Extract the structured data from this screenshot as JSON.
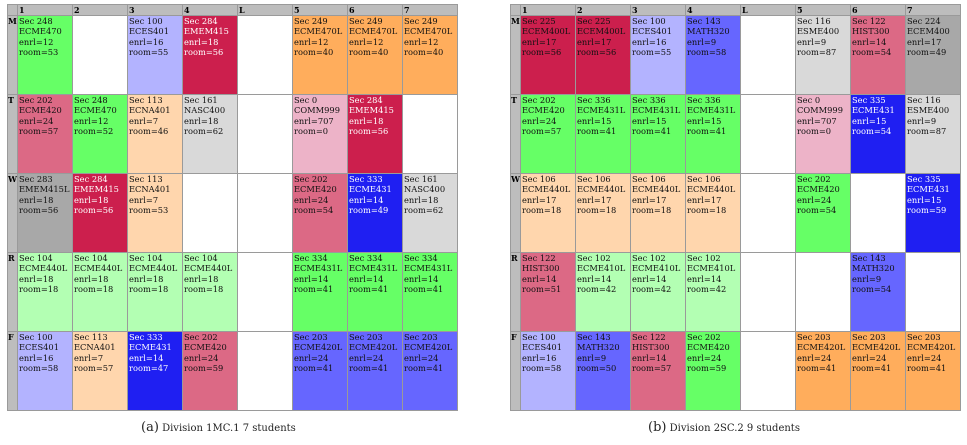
{
  "columns": [
    "1",
    "2",
    "3",
    "4",
    "L",
    "5",
    "6",
    "7"
  ],
  "colors": {
    "green": "#66ff66",
    "lightgreen": "#b3ffb3",
    "periwinkle": "#b3b3ff",
    "blue": "#6666ff",
    "darkblue": "#1f1ff2",
    "crimson": "#cc1f4d",
    "rose": "#dc6985",
    "orange": "#ffad5c",
    "peach": "#ffd6ad",
    "lightgray": "#d9d9d9",
    "gray": "#a8a8a8",
    "pink": "#edb3c8",
    "white": "#ffffff"
  },
  "panels": [
    {
      "caption_tag": "(a)",
      "caption_text": "Division 1MC.1 7 students",
      "days": [
        {
          "label": "M",
          "cells": [
            {
              "sec": "Sec 248",
              "course": "ECME470",
              "enrl": "enrl=12",
              "room": "room=53",
              "color": "green"
            },
            null,
            {
              "sec": "Sec 100",
              "course": "ECES401",
              "enrl": "enrl=16",
              "room": "room=55",
              "color": "periwinkle"
            },
            {
              "sec": "Sec 284",
              "course": "EMEM415",
              "enrl": "enrl=18",
              "room": "room=56",
              "color": "crimson",
              "dark": true
            },
            null,
            {
              "sec": "Sec 249",
              "course": "ECME470L",
              "enrl": "enrl=12",
              "room": "room=40",
              "color": "orange"
            },
            {
              "sec": "Sec 249",
              "course": "ECME470L",
              "enrl": "enrl=12",
              "room": "room=40",
              "color": "orange"
            },
            {
              "sec": "Sec 249",
              "course": "ECME470L",
              "enrl": "enrl=12",
              "room": "room=40",
              "color": "orange"
            }
          ]
        },
        {
          "label": "T",
          "cells": [
            {
              "sec": "Sec 202",
              "course": "ECME420",
              "enrl": "enrl=24",
              "room": "room=57",
              "color": "rose"
            },
            {
              "sec": "Sec 248",
              "course": "ECME470",
              "enrl": "enrl=12",
              "room": "room=52",
              "color": "green"
            },
            {
              "sec": "Sec 113",
              "course": "ECNA401",
              "enrl": "enrl=7",
              "room": "room=46",
              "color": "peach"
            },
            {
              "sec": "Sec 161",
              "course": "NASC400",
              "enrl": "enrl=18",
              "room": "room=62",
              "color": "lightgray"
            },
            null,
            {
              "sec": "Sec 0",
              "course": "COMM999",
              "enrl": "enrl=707",
              "room": "room=0",
              "color": "pink"
            },
            {
              "sec": "Sec 284",
              "course": "EMEM415",
              "enrl": "enrl=18",
              "room": "room=56",
              "color": "crimson",
              "dark": true
            },
            null
          ]
        },
        {
          "label": "W",
          "cells": [
            {
              "sec": "Sec 283",
              "course": "EMEM415L",
              "enrl": "enrl=18",
              "room": "room=56",
              "color": "gray"
            },
            {
              "sec": "Sec 284",
              "course": "EMEM415",
              "enrl": "enrl=18",
              "room": "room=56",
              "color": "crimson",
              "dark": true
            },
            {
              "sec": "Sec 113",
              "course": "ECNA401",
              "enrl": "enrl=7",
              "room": "room=53",
              "color": "peach"
            },
            null,
            null,
            {
              "sec": "Sec 202",
              "course": "ECME420",
              "enrl": "enrl=24",
              "room": "room=54",
              "color": "rose"
            },
            {
              "sec": "Sec 333",
              "course": "ECME431",
              "enrl": "enrl=14",
              "room": "room=49",
              "color": "darkblue",
              "dark": true
            },
            {
              "sec": "Sec 161",
              "course": "NASC400",
              "enrl": "enrl=18",
              "room": "room=62",
              "color": "lightgray"
            }
          ]
        },
        {
          "label": "R",
          "cells": [
            {
              "sec": "Sec 104",
              "course": "ECME440L",
              "enrl": "enrl=18",
              "room": "room=18",
              "color": "lightgreen"
            },
            {
              "sec": "Sec 104",
              "course": "ECME440L",
              "enrl": "enrl=18",
              "room": "room=18",
              "color": "lightgreen"
            },
            {
              "sec": "Sec 104",
              "course": "ECME440L",
              "enrl": "enrl=18",
              "room": "room=18",
              "color": "lightgreen"
            },
            {
              "sec": "Sec 104",
              "course": "ECME440L",
              "enrl": "enrl=18",
              "room": "room=18",
              "color": "lightgreen"
            },
            null,
            {
              "sec": "Sec 334",
              "course": "ECME431L",
              "enrl": "enrl=14",
              "room": "room=41",
              "color": "green"
            },
            {
              "sec": "Sec 334",
              "course": "ECME431L",
              "enrl": "enrl=14",
              "room": "room=41",
              "color": "green"
            },
            {
              "sec": "Sec 334",
              "course": "ECME431L",
              "enrl": "enrl=14",
              "room": "room=41",
              "color": "green"
            }
          ]
        },
        {
          "label": "F",
          "cells": [
            {
              "sec": "Sec 100",
              "course": "ECES401",
              "enrl": "enrl=16",
              "room": "room=58",
              "color": "periwinkle"
            },
            {
              "sec": "Sec 113",
              "course": "ECNA401",
              "enrl": "enrl=7",
              "room": "room=57",
              "color": "peach"
            },
            {
              "sec": "Sec 333",
              "course": "ECME431",
              "enrl": "enrl=14",
              "room": "room=47",
              "color": "darkblue",
              "dark": true
            },
            {
              "sec": "Sec 202",
              "course": "ECME420",
              "enrl": "enrl=24",
              "room": "room=59",
              "color": "rose"
            },
            null,
            {
              "sec": "Sec 203",
              "course": "ECME420L",
              "enrl": "enrl=24",
              "room": "room=41",
              "color": "blue"
            },
            {
              "sec": "Sec 203",
              "course": "ECME420L",
              "enrl": "enrl=24",
              "room": "room=41",
              "color": "blue"
            },
            {
              "sec": "Sec 203",
              "course": "ECME420L",
              "enrl": "enrl=24",
              "room": "room=41",
              "color": "blue"
            }
          ]
        }
      ]
    },
    {
      "caption_tag": "(b)",
      "caption_text": "Division 2SC.2 9 students",
      "days": [
        {
          "label": "M",
          "cells": [
            {
              "sec": "Sec 225",
              "course": "ECEM400L",
              "enrl": "enrl=17",
              "room": "room=56",
              "color": "crimson"
            },
            {
              "sec": "Sec 225",
              "course": "ECEM400L",
              "enrl": "enrl=17",
              "room": "room=56",
              "color": "crimson"
            },
            {
              "sec": "Sec 100",
              "course": "ECES401",
              "enrl": "enrl=16",
              "room": "room=55",
              "color": "periwinkle"
            },
            {
              "sec": "Sec 143",
              "course": "MATH320",
              "enrl": "enrl=9",
              "room": "room=58",
              "color": "blue"
            },
            null,
            {
              "sec": "Sec 116",
              "course": "ESME400",
              "enrl": "enrl=9",
              "room": "room=87",
              "color": "lightgray"
            },
            {
              "sec": "Sec 122",
              "course": "HIST300",
              "enrl": "enrl=14",
              "room": "room=54",
              "color": "rose"
            },
            {
              "sec": "Sec 224",
              "course": "ECEM400",
              "enrl": "enrl=17",
              "room": "room=49",
              "color": "gray"
            }
          ]
        },
        {
          "label": "T",
          "cells": [
            {
              "sec": "Sec 202",
              "course": "ECME420",
              "enrl": "enrl=24",
              "room": "room=57",
              "color": "green"
            },
            {
              "sec": "Sec 336",
              "course": "ECME431L",
              "enrl": "enrl=15",
              "room": "room=41",
              "color": "green"
            },
            {
              "sec": "Sec 336",
              "course": "ECME431L",
              "enrl": "enrl=15",
              "room": "room=41",
              "color": "green"
            },
            {
              "sec": "Sec 336",
              "course": "ECME431L",
              "enrl": "enrl=15",
              "room": "room=41",
              "color": "green"
            },
            null,
            {
              "sec": "Sec 0",
              "course": "COMM999",
              "enrl": "enrl=707",
              "room": "room=0",
              "color": "pink"
            },
            {
              "sec": "Sec 335",
              "course": "ECME431",
              "enrl": "enrl=15",
              "room": "room=54",
              "color": "darkblue",
              "dark": true
            },
            {
              "sec": "Sec 116",
              "course": "ESME400",
              "enrl": "enrl=9",
              "room": "room=87",
              "color": "lightgray"
            }
          ]
        },
        {
          "label": "W",
          "cells": [
            {
              "sec": "Sec 106",
              "course": "ECME440L",
              "enrl": "enrl=17",
              "room": "room=18",
              "color": "peach"
            },
            {
              "sec": "Sec 106",
              "course": "ECME440L",
              "enrl": "enrl=17",
              "room": "room=18",
              "color": "peach"
            },
            {
              "sec": "Sec 106",
              "course": "ECME440L",
              "enrl": "enrl=17",
              "room": "room=18",
              "color": "peach"
            },
            {
              "sec": "Sec 106",
              "course": "ECME440L",
              "enrl": "enrl=17",
              "room": "room=18",
              "color": "peach"
            },
            null,
            {
              "sec": "Sec 202",
              "course": "ECME420",
              "enrl": "enrl=24",
              "room": "room=54",
              "color": "green"
            },
            null,
            {
              "sec": "Sec 335",
              "course": "ECME431",
              "enrl": "enrl=15",
              "room": "room=59",
              "color": "darkblue",
              "dark": true
            }
          ]
        },
        {
          "label": "R",
          "cells": [
            {
              "sec": "Sec 122",
              "course": "HIST300",
              "enrl": "enrl=14",
              "room": "room=51",
              "color": "rose"
            },
            {
              "sec": "Sec 102",
              "course": "ECME410L",
              "enrl": "enrl=14",
              "room": "room=42",
              "color": "lightgreen"
            },
            {
              "sec": "Sec 102",
              "course": "ECME410L",
              "enrl": "enrl=14",
              "room": "room=42",
              "color": "lightgreen"
            },
            {
              "sec": "Sec 102",
              "course": "ECME410L",
              "enrl": "enrl=14",
              "room": "room=42",
              "color": "lightgreen"
            },
            null,
            null,
            {
              "sec": "Sec 143",
              "course": "MATH320",
              "enrl": "enrl=9",
              "room": "room=54",
              "color": "blue"
            },
            null
          ]
        },
        {
          "label": "F",
          "cells": [
            {
              "sec": "Sec 100",
              "course": "ECES401",
              "enrl": "enrl=16",
              "room": "room=58",
              "color": "periwinkle"
            },
            {
              "sec": "Sec 143",
              "course": "MATH320",
              "enrl": "enrl=9",
              "room": "room=50",
              "color": "blue"
            },
            {
              "sec": "Sec 122",
              "course": "HIST300",
              "enrl": "enrl=14",
              "room": "room=57",
              "color": "rose"
            },
            {
              "sec": "Sec 202",
              "course": "ECME420",
              "enrl": "enrl=24",
              "room": "room=59",
              "color": "green"
            },
            null,
            {
              "sec": "Sec 203",
              "course": "ECME420L",
              "enrl": "enrl=24",
              "room": "room=41",
              "color": "orange"
            },
            {
              "sec": "Sec 203",
              "course": "ECME420L",
              "enrl": "enrl=24",
              "room": "room=41",
              "color": "orange"
            },
            {
              "sec": "Sec 203",
              "course": "ECME420L",
              "enrl": "enrl=24",
              "room": "room=41",
              "color": "orange"
            }
          ]
        }
      ]
    }
  ]
}
